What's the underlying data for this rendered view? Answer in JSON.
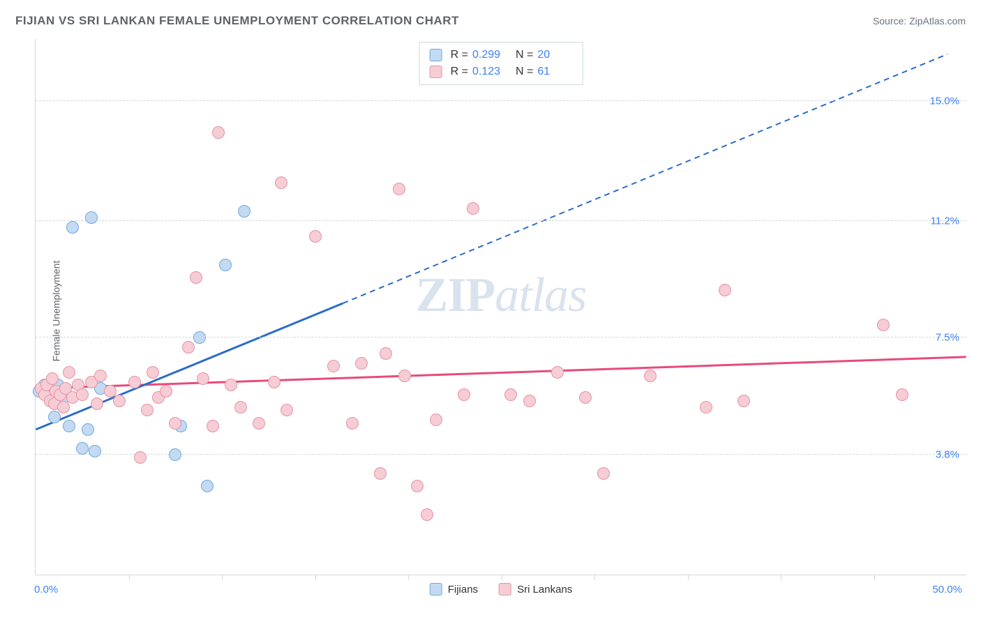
{
  "title": "FIJIAN VS SRI LANKAN FEMALE UNEMPLOYMENT CORRELATION CHART",
  "source": "Source: ZipAtlas.com",
  "ylabel": "Female Unemployment",
  "watermark_zip": "ZIP",
  "watermark_atlas": "atlas",
  "chart": {
    "type": "scatter",
    "xlim": [
      0,
      50
    ],
    "ylim": [
      0,
      17
    ],
    "x_tick_step": 5,
    "x_axis_start_label": "0.0%",
    "x_axis_end_label": "50.0%",
    "y_ticks": [
      {
        "value": 3.8,
        "label": "3.8%"
      },
      {
        "value": 7.5,
        "label": "7.5%"
      },
      {
        "value": 11.2,
        "label": "11.2%"
      },
      {
        "value": 15.0,
        "label": "15.0%"
      }
    ],
    "grid_color": "#d0d7de",
    "axis_color": "#cfd8dc",
    "background_color": "#ffffff",
    "marker_radius": 9,
    "series": [
      {
        "name": "Fijians",
        "fill": "#c3daf2",
        "stroke": "#6ea8dc",
        "line_color": "#2c6bc9",
        "r_value": "0.299",
        "n_value": "20",
        "trend": {
          "x1": 0,
          "y1": 4.6,
          "x2_solid": 16.5,
          "y2_solid": 8.6,
          "x2_dash": 49,
          "y2_dash": 16.5
        },
        "points": [
          {
            "x": 0.2,
            "y": 5.8
          },
          {
            "x": 0.3,
            "y": 5.9
          },
          {
            "x": 0.5,
            "y": 6.0
          },
          {
            "x": 0.8,
            "y": 5.6
          },
          {
            "x": 1.0,
            "y": 5.0
          },
          {
            "x": 1.2,
            "y": 6.0
          },
          {
            "x": 1.5,
            "y": 5.6
          },
          {
            "x": 1.8,
            "y": 4.7
          },
          {
            "x": 2.0,
            "y": 11.0
          },
          {
            "x": 2.5,
            "y": 4.0
          },
          {
            "x": 2.8,
            "y": 4.6
          },
          {
            "x": 3.0,
            "y": 11.3
          },
          {
            "x": 3.2,
            "y": 3.9
          },
          {
            "x": 3.5,
            "y": 5.9
          },
          {
            "x": 7.5,
            "y": 3.8
          },
          {
            "x": 7.8,
            "y": 4.7
          },
          {
            "x": 8.8,
            "y": 7.5
          },
          {
            "x": 9.2,
            "y": 2.8
          },
          {
            "x": 10.2,
            "y": 9.8
          },
          {
            "x": 11.2,
            "y": 11.5
          }
        ]
      },
      {
        "name": "Sri Lankans",
        "fill": "#f6ccd5",
        "stroke": "#e593a5",
        "line_color": "#e84a7a",
        "r_value": "0.123",
        "n_value": "61",
        "trend": {
          "x1": 0,
          "y1": 5.9,
          "x2_solid": 50,
          "y2_solid": 6.9
        },
        "points": [
          {
            "x": 0.3,
            "y": 5.9
          },
          {
            "x": 0.5,
            "y": 5.7
          },
          {
            "x": 0.6,
            "y": 6.0
          },
          {
            "x": 0.8,
            "y": 5.5
          },
          {
            "x": 0.9,
            "y": 6.2
          },
          {
            "x": 1.0,
            "y": 5.4
          },
          {
            "x": 1.1,
            "y": 5.8
          },
          {
            "x": 1.3,
            "y": 5.7
          },
          {
            "x": 1.5,
            "y": 5.3
          },
          {
            "x": 1.6,
            "y": 5.9
          },
          {
            "x": 1.8,
            "y": 6.4
          },
          {
            "x": 2.0,
            "y": 5.6
          },
          {
            "x": 2.3,
            "y": 6.0
          },
          {
            "x": 2.5,
            "y": 5.7
          },
          {
            "x": 3.0,
            "y": 6.1
          },
          {
            "x": 3.3,
            "y": 5.4
          },
          {
            "x": 3.5,
            "y": 6.3
          },
          {
            "x": 4.0,
            "y": 5.8
          },
          {
            "x": 4.5,
            "y": 5.5
          },
          {
            "x": 5.3,
            "y": 6.1
          },
          {
            "x": 5.6,
            "y": 3.7
          },
          {
            "x": 6.0,
            "y": 5.2
          },
          {
            "x": 6.3,
            "y": 6.4
          },
          {
            "x": 6.6,
            "y": 5.6
          },
          {
            "x": 7.0,
            "y": 5.8
          },
          {
            "x": 7.5,
            "y": 4.8
          },
          {
            "x": 8.2,
            "y": 7.2
          },
          {
            "x": 8.6,
            "y": 9.4
          },
          {
            "x": 9.0,
            "y": 6.2
          },
          {
            "x": 9.5,
            "y": 4.7
          },
          {
            "x": 9.8,
            "y": 14.0
          },
          {
            "x": 10.5,
            "y": 6.0
          },
          {
            "x": 11.0,
            "y": 5.3
          },
          {
            "x": 12.0,
            "y": 4.8
          },
          {
            "x": 12.8,
            "y": 6.1
          },
          {
            "x": 13.2,
            "y": 12.4
          },
          {
            "x": 13.5,
            "y": 5.2
          },
          {
            "x": 15.0,
            "y": 10.7
          },
          {
            "x": 16.0,
            "y": 6.6
          },
          {
            "x": 17.0,
            "y": 4.8
          },
          {
            "x": 17.5,
            "y": 6.7
          },
          {
            "x": 18.5,
            "y": 3.2
          },
          {
            "x": 18.8,
            "y": 7.0
          },
          {
            "x": 19.5,
            "y": 12.2
          },
          {
            "x": 19.8,
            "y": 6.3
          },
          {
            "x": 20.5,
            "y": 2.8
          },
          {
            "x": 21.0,
            "y": 1.9
          },
          {
            "x": 21.5,
            "y": 4.9
          },
          {
            "x": 23.0,
            "y": 5.7
          },
          {
            "x": 23.5,
            "y": 11.6
          },
          {
            "x": 25.5,
            "y": 5.7
          },
          {
            "x": 26.5,
            "y": 5.5
          },
          {
            "x": 28.0,
            "y": 6.4
          },
          {
            "x": 29.5,
            "y": 5.6
          },
          {
            "x": 30.5,
            "y": 3.2
          },
          {
            "x": 33.0,
            "y": 6.3
          },
          {
            "x": 36.0,
            "y": 5.3
          },
          {
            "x": 37.0,
            "y": 9.0
          },
          {
            "x": 38.0,
            "y": 5.5
          },
          {
            "x": 45.5,
            "y": 7.9
          },
          {
            "x": 46.5,
            "y": 5.7
          }
        ]
      }
    ]
  },
  "stats_legend_labels": {
    "r": "R =",
    "n": "N ="
  },
  "bottom_legend": [
    "Fijians",
    "Sri Lankans"
  ]
}
